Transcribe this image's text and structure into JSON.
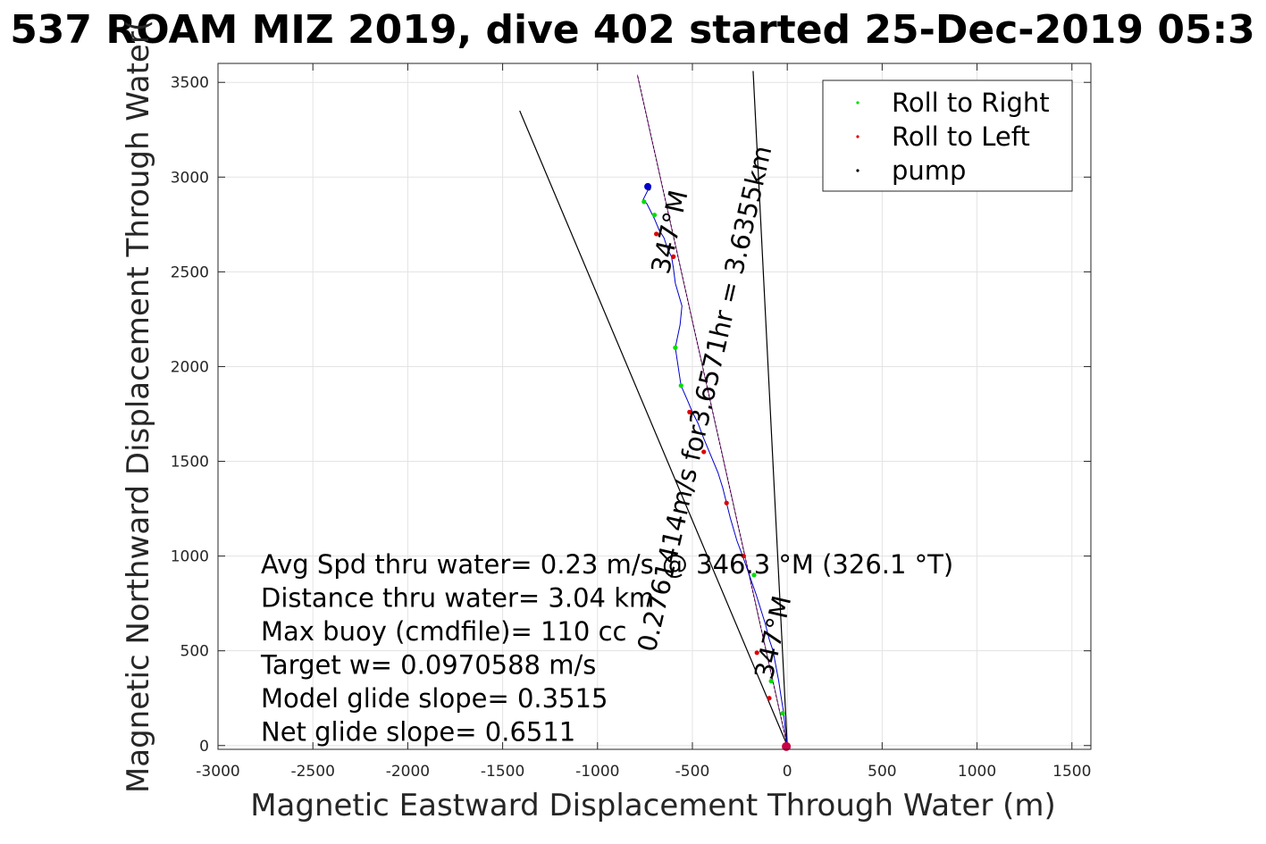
{
  "chart_data": {
    "type": "line",
    "title": "537 ROAM MIZ 2019, dive 402 started 25-Dec-2019 05:3",
    "xlabel": "Magnetic Eastward Displacement Through Water (m)",
    "ylabel": "Magnetic Northward Displacement Through Water(",
    "xlim": [
      -3000,
      1600
    ],
    "ylim": [
      -20,
      3600
    ],
    "xticks": [
      "-3000",
      "-2500",
      "-2000",
      "-1500",
      "-1000",
      "-500",
      "0",
      "500",
      "1000",
      "1500"
    ],
    "yticks": [
      "0",
      "500",
      "1000",
      "1500",
      "2000",
      "2500",
      "3000",
      "3500"
    ],
    "grid": true,
    "legend_position": "top-right",
    "legend": [
      "Roll to Right",
      "Roll to Left",
      "pump"
    ],
    "colors": {
      "roll_right": "#00dd00",
      "roll_left": "#dd0000",
      "pump": "#000000",
      "track": "#0000cc",
      "heading": "#cc00cc",
      "line": "#000000",
      "start": "#cc0044"
    },
    "cone_lines": [
      {
        "x": [
          0,
          -1410
        ],
        "y": [
          0,
          3350
        ]
      },
      {
        "x": [
          0,
          -180
        ],
        "y": [
          0,
          3560
        ]
      }
    ],
    "heading_line": {
      "x": [
        0,
        -790
      ],
      "y": [
        0,
        3540
      ]
    },
    "track": {
      "x": [
        0,
        -10,
        -20,
        -30,
        -45,
        -60,
        -75,
        -95,
        -115,
        -140,
        -165,
        -200,
        -235,
        -265,
        -300,
        -320,
        -340,
        -365,
        -390,
        -415,
        -440,
        -470,
        -500,
        -525,
        -560,
        -575,
        -590,
        -565,
        -555,
        -590,
        -600,
        -610,
        -630,
        -650,
        -675,
        -700,
        -720,
        -740,
        -760,
        -730
      ],
      "y": [
        0,
        80,
        180,
        240,
        340,
        420,
        500,
        560,
        640,
        720,
        800,
        900,
        1000,
        1080,
        1200,
        1280,
        1360,
        1440,
        1500,
        1560,
        1620,
        1700,
        1760,
        1820,
        1900,
        2000,
        2100,
        2220,
        2320,
        2440,
        2520,
        2580,
        2620,
        2680,
        2720,
        2780,
        2820,
        2860,
        2880,
        2940
      ]
    },
    "roll_right_points": {
      "x": [
        -25,
        -85,
        -175,
        -590,
        -560,
        -755,
        -700,
        -730
      ],
      "y": [
        170,
        340,
        900,
        2100,
        1900,
        2870,
        2800,
        2950
      ]
    },
    "roll_left_points": {
      "x": [
        -95,
        -160,
        -230,
        -320,
        -440,
        -515,
        -690,
        -600
      ],
      "y": [
        250,
        490,
        1000,
        1280,
        1550,
        1760,
        2700,
        2580
      ]
    },
    "pump_points": {
      "x": [
        -10,
        -730
      ],
      "y": [
        0,
        2940
      ]
    },
    "annotations": [
      {
        "text": "0.2761414m/s for3.6571hr = 3.6355km",
        "x": -390,
        "y": 1820
      },
      {
        "text": "347°M",
        "x": -575,
        "y": 2700
      },
      {
        "text": "347°M",
        "x": -30,
        "y": 560
      }
    ],
    "stats": [
      "Avg Spd thru water=  0.23 m/s @ 346.3 °M (326.1 °T)",
      "Distance thru water=  3.04 km",
      "Max buoy (cmdfile)= 110 cc",
      "Target w= 0.0970588 m/s",
      "Model glide slope= 0.3515",
      "Net glide slope= 0.6511"
    ]
  }
}
